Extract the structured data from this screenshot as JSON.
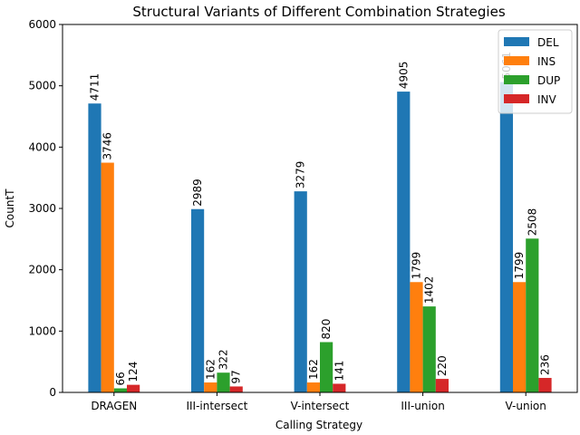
{
  "chart_data": {
    "type": "bar",
    "title": "Structural Variants of Different Combination Strategies",
    "xlabel": "Calling Strategy",
    "ylabel": "CountT",
    "ylim": [
      0,
      6000
    ],
    "yticks": [
      0,
      1000,
      2000,
      3000,
      4000,
      5000,
      6000
    ],
    "categories": [
      "DRAGEN",
      "III-intersect",
      "V-intersect",
      "III-union",
      "V-union"
    ],
    "series": [
      {
        "name": "DEL",
        "color": "#1f77b4",
        "values": [
          4711,
          2989,
          3279,
          4905,
          5061
        ]
      },
      {
        "name": "INS",
        "color": "#ff7f0e",
        "values": [
          3746,
          162,
          162,
          1799,
          1799
        ]
      },
      {
        "name": "DUP",
        "color": "#2ca02c",
        "values": [
          66,
          322,
          820,
          1402,
          2508
        ]
      },
      {
        "name": "INV",
        "color": "#d62728",
        "values": [
          124,
          97,
          141,
          220,
          236
        ]
      }
    ],
    "legend_position": "top-right",
    "grid": false
  }
}
